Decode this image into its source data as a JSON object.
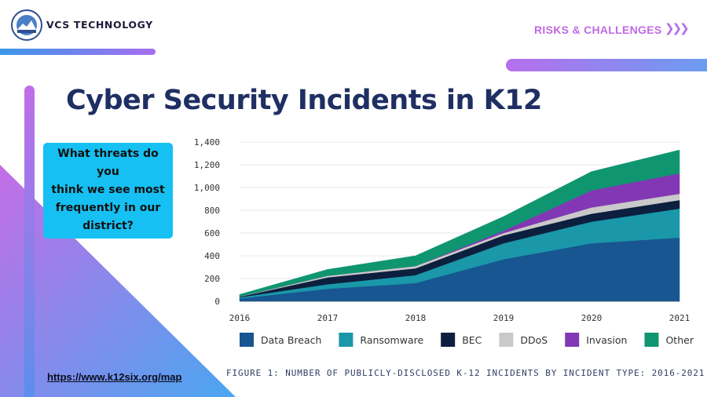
{
  "header": {
    "brand": "VCS TECHNOLOGY",
    "section": "RISKS & CHALLENGES",
    "section_icon": "triple-chevron-right-icon",
    "logo_icon": "district-seal-logo"
  },
  "slide": {
    "title": "Cyber Security Incidents in K12",
    "question_lines": [
      "What threats do you",
      "think we see most",
      "frequently in our",
      "district?"
    ],
    "link": "https://www.k12six.org/map",
    "caption": "FIGURE 1: NUMBER OF PUBLICLY-DISCLOSED K-12 INCIDENTS BY INCIDENT TYPE: 2016-2021"
  },
  "colors": {
    "title": "#1f2f63",
    "question_bg": "#16c0f2",
    "section": "#c16be3"
  },
  "chart_data": {
    "type": "area",
    "stacked": true,
    "x": [
      "2016",
      "2017",
      "2018",
      "2019",
      "2020",
      "2021"
    ],
    "ylim": [
      0,
      1400
    ],
    "yticks": [
      "0",
      "200",
      "400",
      "600",
      "800",
      "1,000",
      "1,200",
      "1,400"
    ],
    "grid": "horizontal",
    "legend": "bottom",
    "series": [
      {
        "name": "Data Breach",
        "color": "#175691",
        "values": [
          25,
          110,
          160,
          370,
          510,
          560
        ]
      },
      {
        "name": "Ransomware",
        "color": "#1a97a9",
        "values": [
          10,
          40,
          70,
          140,
          190,
          255
        ]
      },
      {
        "name": "BEC",
        "color": "#0c1f3e",
        "values": [
          5,
          60,
          60,
          70,
          70,
          75
        ]
      },
      {
        "name": "DDoS",
        "color": "#c9c9c9",
        "values": [
          2,
          15,
          20,
          20,
          55,
          55
        ]
      },
      {
        "name": "Invasion",
        "color": "#8238b4",
        "values": [
          0,
          0,
          0,
          20,
          150,
          180
        ]
      },
      {
        "name": "Other",
        "color": "#0f9670",
        "values": [
          18,
          55,
          90,
          125,
          165,
          205
        ]
      }
    ]
  }
}
